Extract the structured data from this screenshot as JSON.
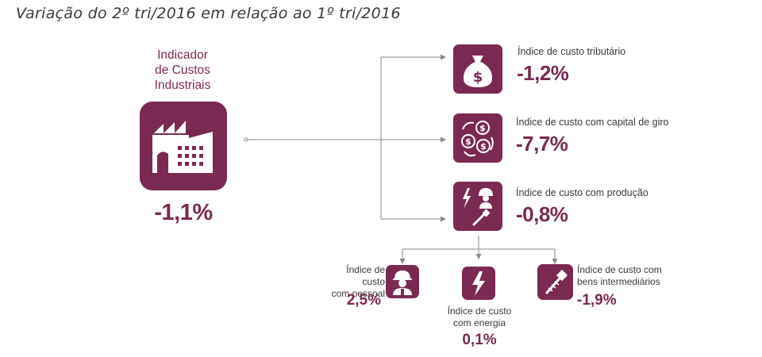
{
  "title": "Variação do 2º tri/2016 em relação ao 1º tri/2016",
  "main": {
    "label": "Indicador\nde Custos\nIndustriais",
    "value": "-1,1%",
    "icon": "factory-icon"
  },
  "right_items": [
    {
      "label": "Índice de custo tributário",
      "value": "-1,2%",
      "icon": "money-bag-icon"
    },
    {
      "label": "Índice de custo com capital de giro",
      "value": "-7,7%",
      "icon": "coins-cycle-icon"
    },
    {
      "label": "Índice de custo com produção",
      "value": "-0,8%",
      "icon": "production-icon"
    }
  ],
  "bottom_items": [
    {
      "label": "Índice de custo\ncom pessoal",
      "value": "2,5%",
      "icon": "worker-icon"
    },
    {
      "label": "Índice de custo\ncom energia",
      "value": "0,1%",
      "icon": "lightning-icon"
    },
    {
      "label": "Índice de custo com\nbens intermediários",
      "value": "-1,9%",
      "icon": "screw-icon"
    }
  ],
  "colors": {
    "accent": "#7a2a52",
    "text": "#3a3a3a",
    "line": "#8a8a8a"
  }
}
